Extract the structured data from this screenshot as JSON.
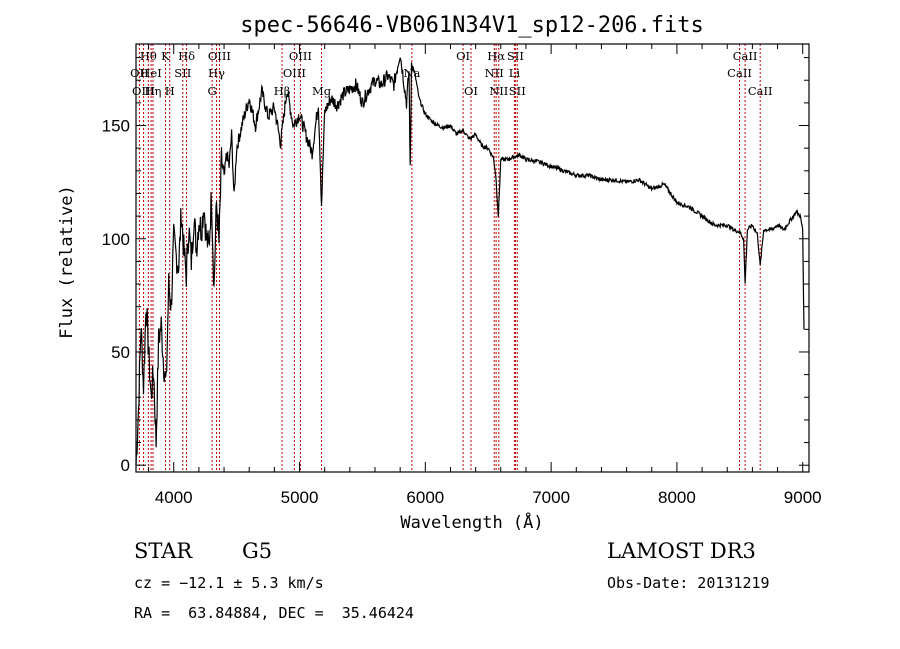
{
  "chart_data": {
    "type": "line",
    "title": "spec-56646-VB061N34V1_sp12-206.fits",
    "xlabel": "Wavelength (Å)",
    "ylabel": "Flux (relative)",
    "xlim": [
      3700,
      9050
    ],
    "ylim": [
      -3,
      186
    ],
    "xticks": [
      4000,
      5000,
      6000,
      7000,
      8000,
      9000
    ],
    "yticks": [
      0,
      50,
      100,
      150
    ],
    "xtick_labels": [
      "4000",
      "5000",
      "6000",
      "7000",
      "8000",
      "9000"
    ],
    "ytick_labels": [
      "0",
      "50",
      "100",
      "150"
    ],
    "grid": false,
    "spectrum": {
      "name": "flux",
      "x": [
        3700,
        3720,
        3740,
        3760,
        3780,
        3800,
        3820,
        3840,
        3860,
        3880,
        3900,
        3920,
        3940,
        3960,
        3980,
        4000,
        4020,
        4040,
        4060,
        4080,
        4100,
        4120,
        4140,
        4160,
        4180,
        4200,
        4220,
        4240,
        4260,
        4280,
        4300,
        4320,
        4340,
        4360,
        4380,
        4400,
        4420,
        4440,
        4460,
        4480,
        4500,
        4550,
        4600,
        4650,
        4700,
        4750,
        4800,
        4850,
        4900,
        4950,
        5000,
        5050,
        5100,
        5150,
        5175,
        5200,
        5250,
        5300,
        5350,
        5400,
        5450,
        5500,
        5550,
        5600,
        5650,
        5700,
        5750,
        5800,
        5850,
        5870,
        5880,
        5890,
        5900,
        5920,
        5950,
        6000,
        6050,
        6100,
        6150,
        6200,
        6250,
        6300,
        6350,
        6400,
        6450,
        6500,
        6540,
        6560,
        6580,
        6600,
        6650,
        6700,
        6750,
        6800,
        6900,
        7000,
        7100,
        7200,
        7300,
        7400,
        7500,
        7600,
        7700,
        7800,
        7900,
        8000,
        8100,
        8200,
        8300,
        8400,
        8450,
        8500,
        8530,
        8542,
        8560,
        8600,
        8640,
        8662,
        8690,
        8750,
        8800,
        8850,
        8900,
        8950,
        8980,
        9000,
        9010
      ],
      "values": [
        0,
        25,
        62,
        35,
        72,
        50,
        30,
        42,
        10,
        55,
        62,
        45,
        35,
        80,
        70,
        100,
        92,
        88,
        112,
        95,
        84,
        105,
        90,
        110,
        96,
        108,
        104,
        115,
        100,
        96,
        120,
        78,
        116,
        98,
        135,
        126,
        138,
        132,
        146,
        118,
        140,
        152,
        162,
        150,
        165,
        154,
        158,
        142,
        166,
        150,
        155,
        146,
        138,
        160,
        115,
        156,
        162,
        159,
        164,
        166,
        168,
        160,
        166,
        170,
        168,
        172,
        168,
        182,
        160,
        174,
        130,
        178,
        176,
        172,
        162,
        155,
        152,
        150,
        149,
        150,
        146,
        148,
        144,
        146,
        141,
        140,
        136,
        128,
        110,
        135,
        135,
        136,
        137,
        135,
        134,
        132,
        130,
        128,
        128,
        126,
        126,
        125,
        126,
        122,
        124,
        116,
        114,
        110,
        106,
        106,
        104,
        103,
        100,
        80,
        104,
        106,
        102,
        88,
        104,
        104,
        106,
        104,
        108,
        112,
        110,
        104,
        60
      ]
    },
    "emission_lines": [
      {
        "label": "Hθ",
        "wl": 3798,
        "row": 1
      },
      {
        "label": "OII",
        "wl": 3727,
        "row": 2
      },
      {
        "label": "HeI",
        "wl": 3820,
        "row": 2
      },
      {
        "label": "OIII",
        "wl": 3760,
        "row": 3
      },
      {
        "label": "Hη",
        "wl": 3835,
        "row": 3
      },
      {
        "label": "K",
        "wl": 3934,
        "row": 1
      },
      {
        "label": "H",
        "wl": 3968,
        "row": 3
      },
      {
        "label": "Hδ",
        "wl": 4102,
        "row": 1
      },
      {
        "label": "SII",
        "wl": 4072,
        "row": 2
      },
      {
        "label": "OIII",
        "wl": 4363,
        "row": 1
      },
      {
        "label": "Hγ",
        "wl": 4340,
        "row": 2
      },
      {
        "label": "G",
        "wl": 4305,
        "row": 3
      },
      {
        "label": "OIII",
        "wl": 5007,
        "row": 1
      },
      {
        "label": "OIII",
        "wl": 4959,
        "row": 2
      },
      {
        "label": "Hβ",
        "wl": 4861,
        "row": 4
      },
      {
        "label": "Mg",
        "wl": 5175,
        "row": 4
      },
      {
        "label": "Na",
        "wl": 5893,
        "row": 2
      },
      {
        "label": "OI",
        "wl": 6300,
        "row": 1
      },
      {
        "label": "OI",
        "wl": 6363,
        "row": 3
      },
      {
        "label": "Hα",
        "wl": 6563,
        "row": 1
      },
      {
        "label": "NII",
        "wl": 6548,
        "row": 2
      },
      {
        "label": "NII",
        "wl": 6584,
        "row": 3
      },
      {
        "label": "SII",
        "wl": 6716,
        "row": 1
      },
      {
        "label": "Li",
        "wl": 6708,
        "row": 2
      },
      {
        "label": "SII",
        "wl": 6731,
        "row": 3
      },
      {
        "label": "CaII",
        "wl": 8542,
        "row": 1
      },
      {
        "label": "CaII",
        "wl": 8498,
        "row": 2
      },
      {
        "label": "CaII",
        "wl": 8662,
        "row": 3
      }
    ],
    "line_color": "#cc0000",
    "spectrum_color": "#000000"
  },
  "info": {
    "class": "STAR",
    "subclass": "G5",
    "survey": "LAMOST DR3",
    "cz": "cz = −12.1 ± 5.3 km/s",
    "obs_date": "Obs-Date: 20131219",
    "radec": "RA =  63.84884, DEC =  35.46424"
  }
}
